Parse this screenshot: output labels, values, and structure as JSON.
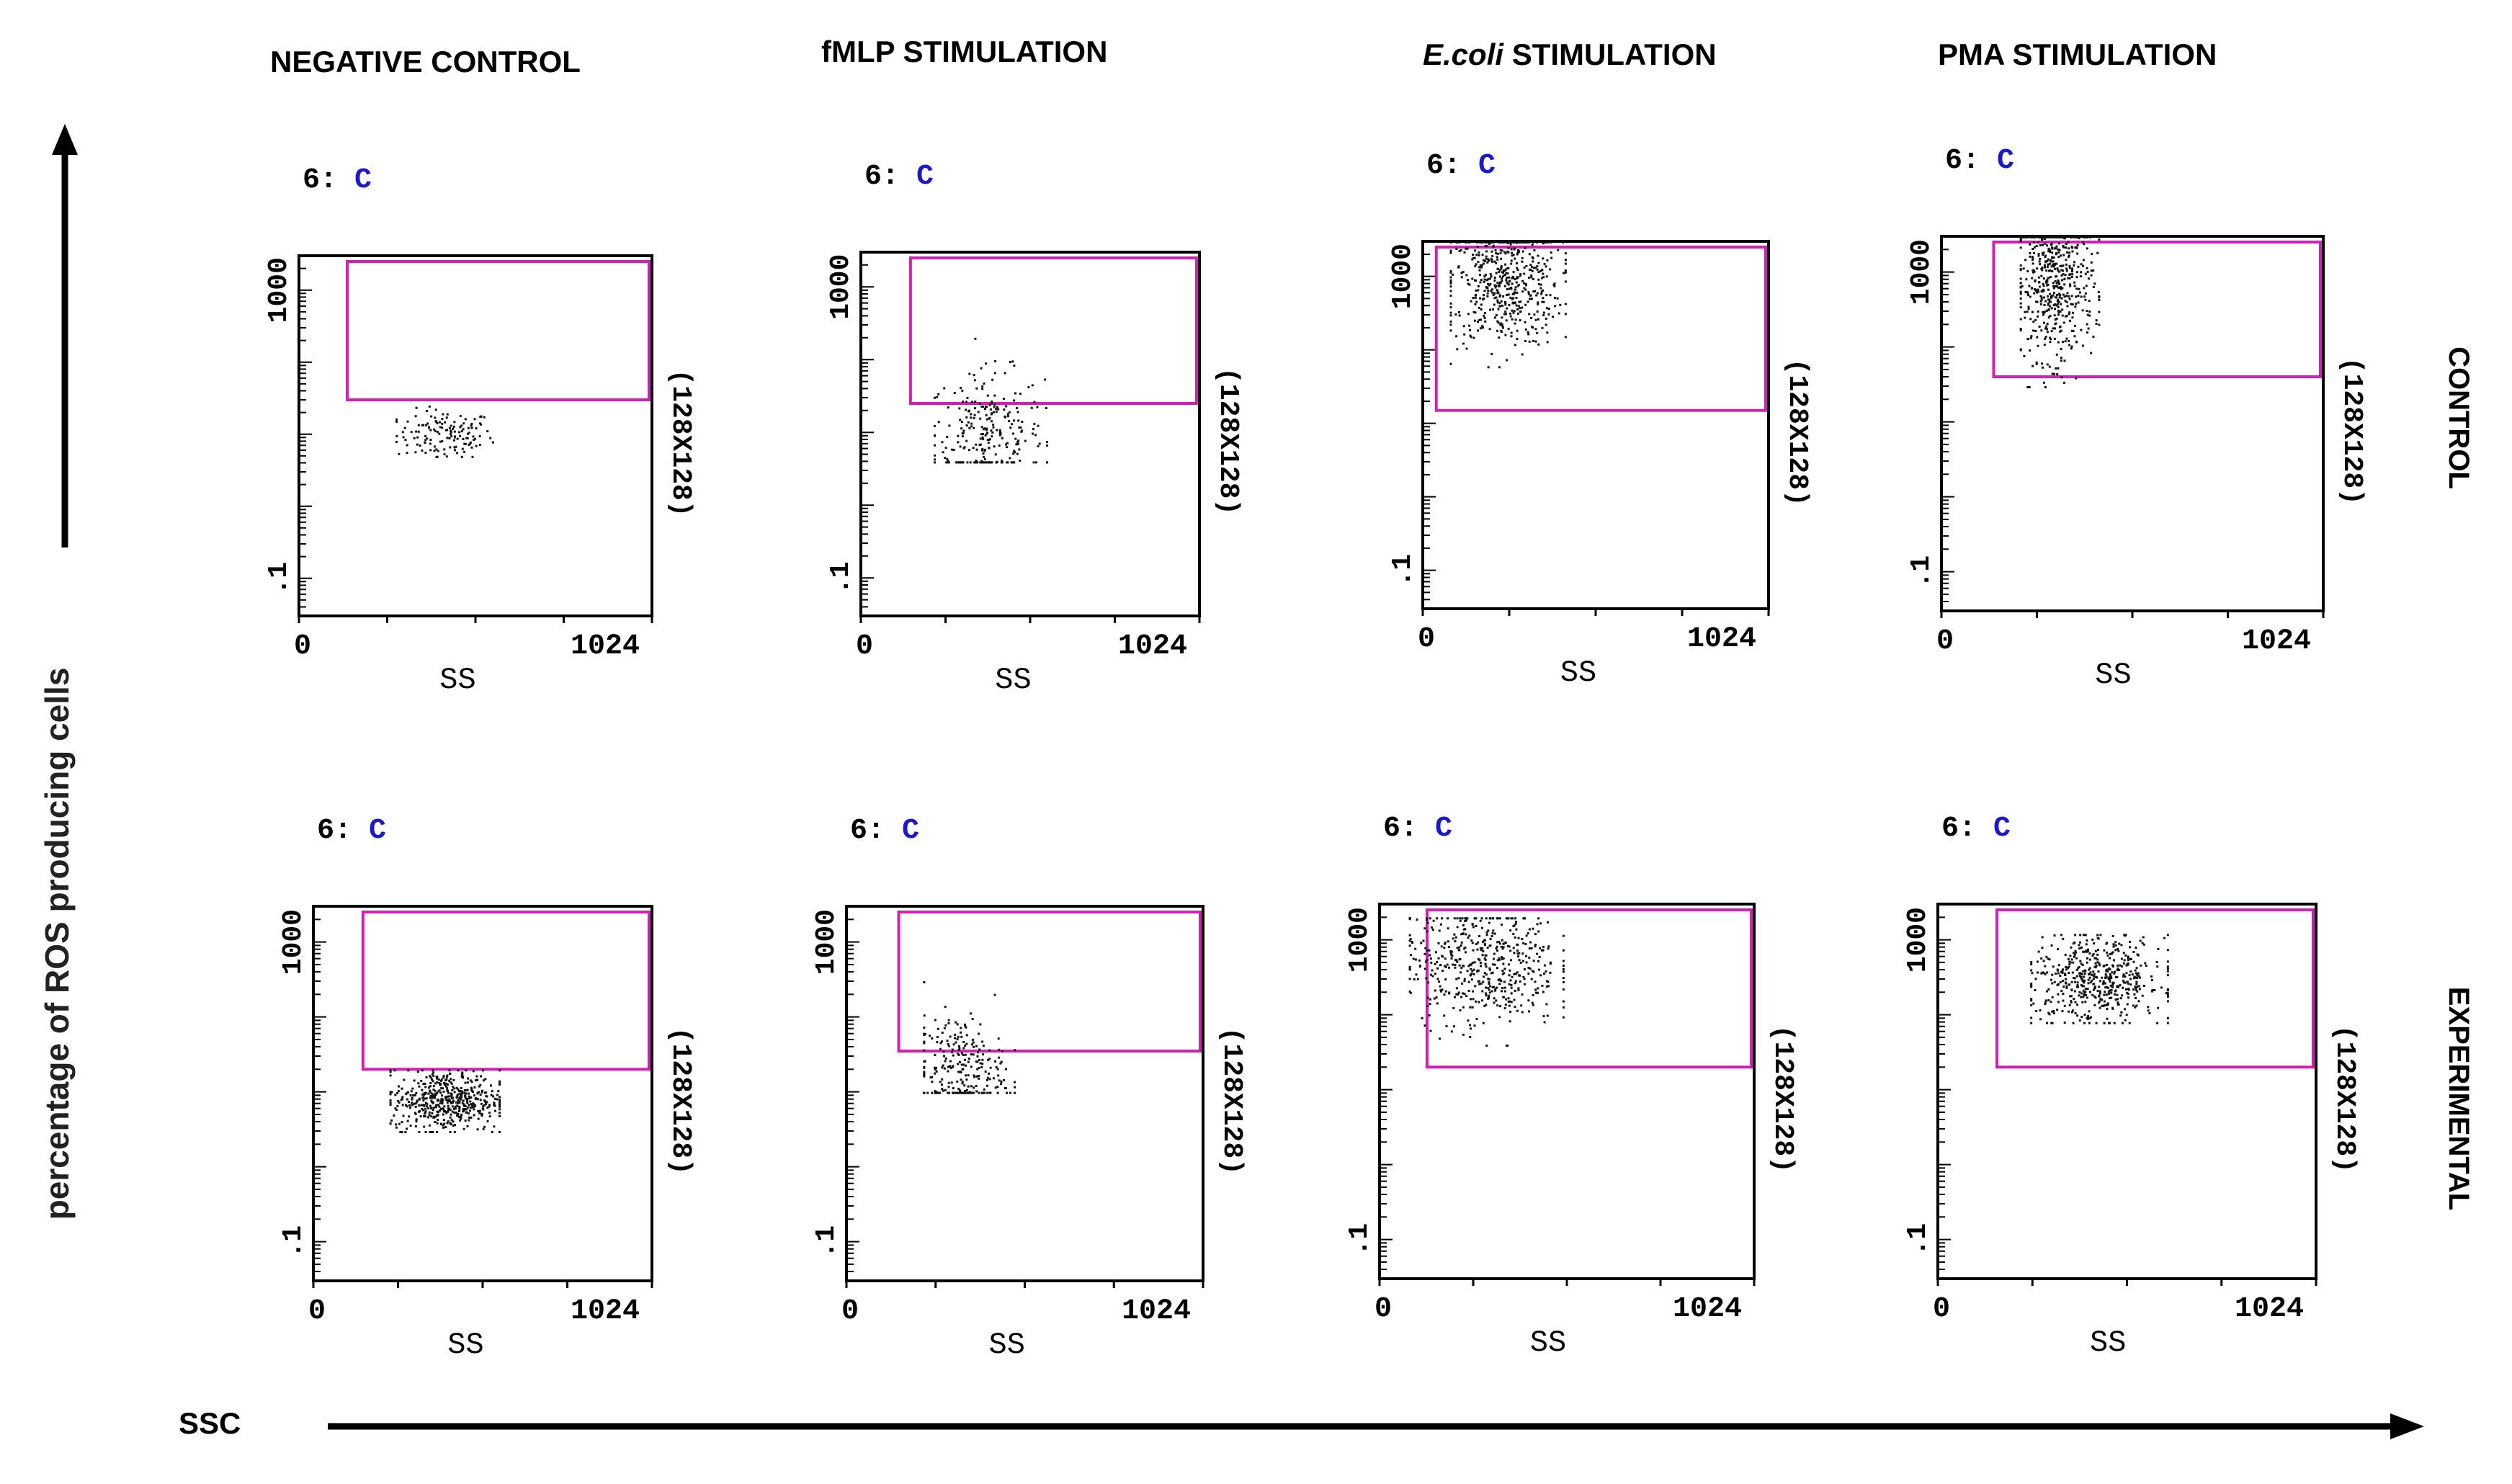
{
  "figure": {
    "column_headers": [
      {
        "text": "NEGATIVE CONTROL",
        "italic_prefix": ""
      },
      {
        "text": "fMLP STIMULATION",
        "italic_prefix": ""
      },
      {
        "text": " STIMULATION",
        "italic_prefix": "E.coli"
      },
      {
        "text": "PMA STIMULATION",
        "italic_prefix": ""
      }
    ],
    "row_labels": [
      "CONTROL",
      "EXPERIMENTAL"
    ],
    "y_axis_title": "percentage of ROS producing cells",
    "x_axis_title": "SSC",
    "panel_tag_prefix": "6:",
    "panel_tag_letter": "C",
    "panel_size_label": "(128X128)",
    "x_axis_label": "SS",
    "x_ticks": [
      "0",
      "1024"
    ],
    "y_ticks": [
      "1000",
      ".1"
    ],
    "colors": {
      "gate": "#d21fb4",
      "tag_letter": "#1a1acc",
      "dots": "#111111",
      "axis": "#000000"
    }
  },
  "chart_data": [
    {
      "type": "scatter",
      "panel": "negative-control-control",
      "xlim": [
        0,
        1024
      ],
      "y_scale": "log",
      "ylim": [
        0.03,
        3000
      ],
      "gate": {
        "x": [
          140,
          1024
        ],
        "y": [
          30,
          3000
        ]
      },
      "cluster": {
        "x": [
          280,
          560
        ],
        "y": [
          5,
          25
        ],
        "center_x": 420,
        "center_y": 10,
        "density": "sparse"
      }
    },
    {
      "type": "scatter",
      "panel": "fmlp-control",
      "xlim": [
        0,
        1024
      ],
      "y_scale": "log",
      "ylim": [
        0.03,
        3000
      ],
      "gate": {
        "x": [
          150,
          1024
        ],
        "y": [
          25,
          3000
        ]
      },
      "cluster": {
        "x": [
          220,
          560
        ],
        "y": [
          4,
          200
        ],
        "center_x": 380,
        "center_y": 10,
        "density": "medium"
      }
    },
    {
      "type": "scatter",
      "panel": "ecoli-control",
      "xlim": [
        0,
        1024
      ],
      "y_scale": "log",
      "ylim": [
        0.03,
        3000
      ],
      "gate": {
        "x": [
          40,
          1024
        ],
        "y": [
          15,
          3000
        ]
      },
      "cluster": {
        "x": [
          80,
          420
        ],
        "y": [
          60,
          3000
        ],
        "center_x": 240,
        "center_y": 800,
        "density": "dense"
      }
    },
    {
      "type": "scatter",
      "panel": "pma-control",
      "xlim": [
        0,
        1024
      ],
      "y_scale": "log",
      "ylim": [
        0.03,
        3000
      ],
      "gate": {
        "x": [
          140,
          1024
        ],
        "y": [
          40,
          3000
        ]
      },
      "cluster": {
        "x": [
          210,
          420
        ],
        "y": [
          30,
          3000
        ],
        "center_x": 300,
        "center_y": 700,
        "density": "dense"
      }
    },
    {
      "type": "scatter",
      "panel": "negative-control-experimental",
      "xlim": [
        0,
        1024
      ],
      "y_scale": "log",
      "ylim": [
        0.03,
        3000
      ],
      "gate": {
        "x": [
          150,
          1024
        ],
        "y": [
          20,
          3000
        ]
      },
      "cluster": {
        "x": [
          230,
          560
        ],
        "y": [
          3,
          20
        ],
        "center_x": 400,
        "center_y": 8,
        "density": "dense"
      }
    },
    {
      "type": "scatter",
      "panel": "fmlp-experimental",
      "xlim": [
        0,
        1024
      ],
      "y_scale": "log",
      "ylim": [
        0.03,
        3000
      ],
      "gate": {
        "x": [
          150,
          1024
        ],
        "y": [
          35,
          3000
        ]
      },
      "cluster": {
        "x": [
          220,
          480
        ],
        "y": [
          10,
          300
        ],
        "center_x": 320,
        "center_y": 20,
        "density": "medium"
      }
    },
    {
      "type": "scatter",
      "panel": "ecoli-experimental",
      "xlim": [
        0,
        1024
      ],
      "y_scale": "log",
      "ylim": [
        0.03,
        3000
      ],
      "gate": {
        "x": [
          130,
          1024
        ],
        "y": [
          20,
          3000
        ]
      },
      "cluster": {
        "x": [
          80,
          500
        ],
        "y": [
          40,
          2000
        ],
        "center_x": 280,
        "center_y": 500,
        "density": "dense"
      }
    },
    {
      "type": "scatter",
      "panel": "pma-experimental",
      "xlim": [
        0,
        1024
      ],
      "y_scale": "log",
      "ylim": [
        0.03,
        3000
      ],
      "gate": {
        "x": [
          160,
          1024
        ],
        "y": [
          20,
          3000
        ]
      },
      "cluster": {
        "x": [
          250,
          620
        ],
        "y": [
          80,
          1200
        ],
        "center_x": 430,
        "center_y": 300,
        "density": "dense"
      }
    }
  ]
}
